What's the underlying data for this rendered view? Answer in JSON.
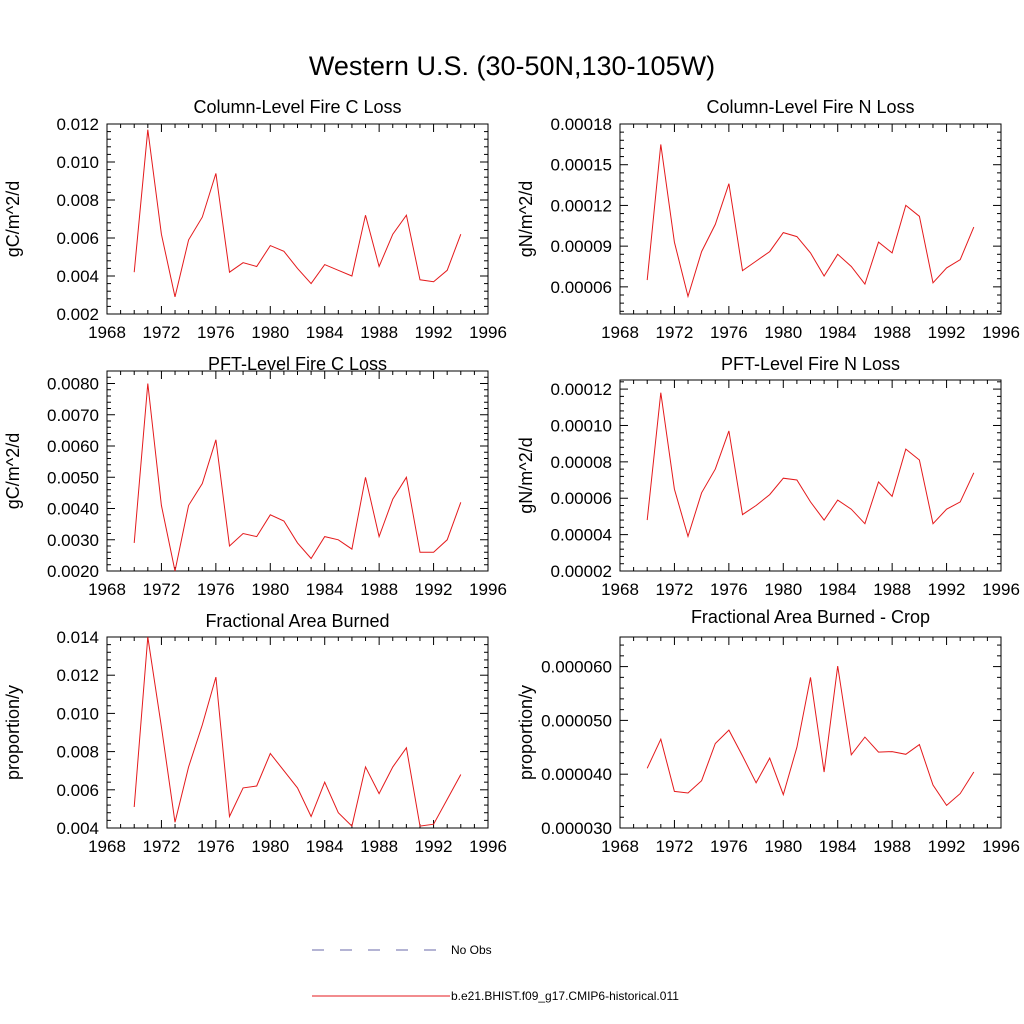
{
  "suptitle": "Western U.S. (30-50N,130-105W)",
  "legend": {
    "obs_label": "No Obs",
    "obs_color": "#6a6aa8",
    "model_label": "b.e21.BHIST.f09_g17.CMIP6-historical.011",
    "model_color": "#e41a1c"
  },
  "chart_data": [
    {
      "type": "line",
      "title": "Column-Level Fire C Loss",
      "ylabel": "gC/m^2/d",
      "xlim": [
        1968,
        1996
      ],
      "ylim": [
        0.002,
        0.012
      ],
      "xticks": [
        1968,
        1972,
        1976,
        1980,
        1984,
        1988,
        1992,
        1996
      ],
      "yticks": [
        "0.002",
        "0.004",
        "0.006",
        "0.008",
        "0.010",
        "0.012"
      ],
      "series": [
        {
          "x": [
            1970,
            1971,
            1972,
            1973,
            1974,
            1975,
            1976,
            1977,
            1978,
            1979,
            1980,
            1981,
            1982,
            1983,
            1984,
            1985,
            1986,
            1987,
            1988,
            1989,
            1990,
            1991,
            1992,
            1993,
            1994
          ],
          "values": [
            0.0042,
            0.0117,
            0.0062,
            0.0029,
            0.0059,
            0.0071,
            0.0094,
            0.0042,
            0.0047,
            0.0045,
            0.0056,
            0.0053,
            0.0044,
            0.0036,
            0.0046,
            0.0043,
            0.004,
            0.0072,
            0.0045,
            0.0062,
            0.0072,
            0.0038,
            0.0037,
            0.0043,
            0.0062
          ]
        }
      ]
    },
    {
      "type": "line",
      "title": "Column-Level Fire N Loss",
      "ylabel": "gN/m^2/d",
      "xlim": [
        1968,
        1996
      ],
      "ylim": [
        4e-05,
        0.00018
      ],
      "xticks": [
        1968,
        1972,
        1976,
        1980,
        1984,
        1988,
        1992,
        1996
      ],
      "yticks": [
        "0.00006",
        "0.00009",
        "0.00012",
        "0.00015",
        "0.00018"
      ],
      "series": [
        {
          "x": [
            1970,
            1971,
            1972,
            1973,
            1974,
            1975,
            1976,
            1977,
            1978,
            1979,
            1980,
            1981,
            1982,
            1983,
            1984,
            1985,
            1986,
            1987,
            1988,
            1989,
            1990,
            1991,
            1992,
            1993,
            1994
          ],
          "values": [
            6.5e-05,
            0.000165,
            9.3e-05,
            5.3e-05,
            8.6e-05,
            0.000106,
            0.000136,
            7.2e-05,
            7.9e-05,
            8.6e-05,
            0.0001,
            9.7e-05,
            8.5e-05,
            6.8e-05,
            8.4e-05,
            7.5e-05,
            6.2e-05,
            9.3e-05,
            8.5e-05,
            0.00012,
            0.000112,
            6.3e-05,
            7.4e-05,
            8e-05,
            0.000104
          ]
        }
      ]
    },
    {
      "type": "line",
      "title": "PFT-Level Fire C Loss",
      "ylabel": "gC/m^2/d",
      "xlim": [
        1968,
        1996
      ],
      "ylim": [
        0.002,
        0.0084
      ],
      "xticks": [
        1968,
        1972,
        1976,
        1980,
        1984,
        1988,
        1992,
        1996
      ],
      "yticks": [
        "0.0020",
        "0.0030",
        "0.0040",
        "0.0050",
        "0.0060",
        "0.0070",
        "0.0080"
      ],
      "series": [
        {
          "x": [
            1970,
            1971,
            1972,
            1973,
            1974,
            1975,
            1976,
            1977,
            1978,
            1979,
            1980,
            1981,
            1982,
            1983,
            1984,
            1985,
            1986,
            1987,
            1988,
            1989,
            1990,
            1991,
            1992,
            1993,
            1994
          ],
          "values": [
            0.0029,
            0.008,
            0.0041,
            0.002,
            0.0041,
            0.0048,
            0.0062,
            0.0028,
            0.0032,
            0.0031,
            0.0038,
            0.0036,
            0.0029,
            0.0024,
            0.0031,
            0.003,
            0.0027,
            0.005,
            0.0031,
            0.0043,
            0.005,
            0.0026,
            0.0026,
            0.003,
            0.0042
          ]
        }
      ]
    },
    {
      "type": "line",
      "title": "PFT-Level Fire N Loss",
      "ylabel": "gN/m^2/d",
      "xlim": [
        1968,
        1996
      ],
      "ylim": [
        2e-05,
        0.000125
      ],
      "xticks": [
        1968,
        1972,
        1976,
        1980,
        1984,
        1988,
        1992,
        1996
      ],
      "yticks": [
        "0.00002",
        "0.00004",
        "0.00006",
        "0.00008",
        "0.00010",
        "0.00012"
      ],
      "series": [
        {
          "x": [
            1970,
            1971,
            1972,
            1973,
            1974,
            1975,
            1976,
            1977,
            1978,
            1979,
            1980,
            1981,
            1982,
            1983,
            1984,
            1985,
            1986,
            1987,
            1988,
            1989,
            1990,
            1991,
            1992,
            1993,
            1994
          ],
          "values": [
            4.8e-05,
            0.000118,
            6.5e-05,
            3.9e-05,
            6.3e-05,
            7.6e-05,
            9.7e-05,
            5.1e-05,
            5.6e-05,
            6.2e-05,
            7.1e-05,
            7e-05,
            5.8e-05,
            4.8e-05,
            5.9e-05,
            5.4e-05,
            4.6e-05,
            6.9e-05,
            6.1e-05,
            8.7e-05,
            8.1e-05,
            4.6e-05,
            5.4e-05,
            5.8e-05,
            7.4e-05
          ]
        }
      ]
    },
    {
      "type": "line",
      "title": "Fractional Area Burned",
      "ylabel": "proportion/y",
      "xlim": [
        1968,
        1996
      ],
      "ylim": [
        0.004,
        0.014
      ],
      "xticks": [
        1968,
        1972,
        1976,
        1980,
        1984,
        1988,
        1992,
        1996
      ],
      "yticks": [
        "0.004",
        "0.006",
        "0.008",
        "0.010",
        "0.012",
        "0.014"
      ],
      "series": [
        {
          "x": [
            1970,
            1971,
            1972,
            1973,
            1974,
            1975,
            1976,
            1977,
            1978,
            1979,
            1980,
            1981,
            1982,
            1983,
            1984,
            1985,
            1986,
            1987,
            1988,
            1989,
            1990,
            1991,
            1992,
            1993,
            1994
          ],
          "values": [
            0.0051,
            0.014,
            0.0093,
            0.0043,
            0.0072,
            0.0094,
            0.0119,
            0.0046,
            0.0061,
            0.0062,
            0.0079,
            0.007,
            0.0061,
            0.0046,
            0.0064,
            0.0048,
            0.0041,
            0.0072,
            0.0058,
            0.0072,
            0.0082,
            0.0041,
            0.0042,
            0.0055,
            0.0068
          ]
        }
      ]
    },
    {
      "type": "line",
      "title": "Fractional Area Burned - Crop",
      "ylabel": "proportion/y",
      "xlim": [
        1968,
        1996
      ],
      "ylim": [
        3e-05,
        6.55e-05
      ],
      "xticks": [
        1968,
        1972,
        1976,
        1980,
        1984,
        1988,
        1992,
        1996
      ],
      "yticks": [
        "0.000030",
        "0.000040",
        "0.000050",
        "0.000060"
      ],
      "series": [
        {
          "x": [
            1970,
            1971,
            1972,
            1973,
            1974,
            1975,
            1976,
            1977,
            1978,
            1979,
            1980,
            1981,
            1982,
            1983,
            1984,
            1985,
            1986,
            1987,
            1988,
            1989,
            1990,
            1991,
            1992,
            1993,
            1994
          ],
          "values": [
            4.11e-05,
            4.65e-05,
            3.68e-05,
            3.65e-05,
            3.88e-05,
            4.57e-05,
            4.82e-05,
            4.34e-05,
            3.84e-05,
            4.3e-05,
            3.62e-05,
            4.5e-05,
            5.8e-05,
            4.04e-05,
            6.01e-05,
            4.36e-05,
            4.69e-05,
            4.41e-05,
            4.42e-05,
            4.37e-05,
            4.55e-05,
            3.8e-05,
            3.42e-05,
            3.64e-05,
            4.04e-05
          ]
        }
      ]
    }
  ]
}
